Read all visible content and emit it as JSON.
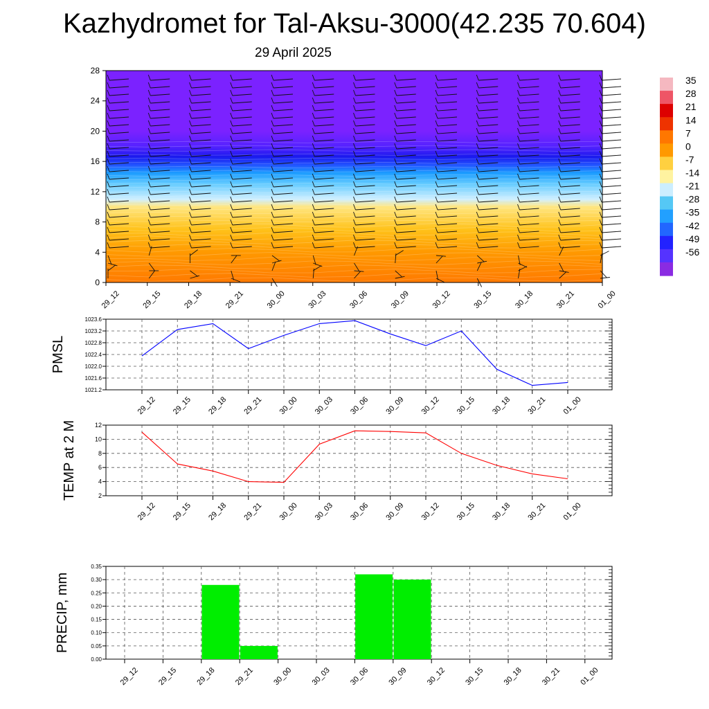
{
  "title": "Kazhydromet for Tal-Aksu-3000(42.235 70.604)",
  "subtitle": "29 April 2025",
  "time_labels": [
    "29_12",
    "29_15",
    "29_18",
    "29_21",
    "30_00",
    "30_03",
    "30_06",
    "30_09",
    "30_12",
    "30_15",
    "30_18",
    "30_21",
    "01_00"
  ],
  "colorbar": {
    "labels": [
      "35",
      "28",
      "21",
      "14",
      "7",
      "0",
      "-7",
      "-14",
      "-21",
      "-28",
      "-35",
      "-42",
      "-49",
      "-56"
    ]
  },
  "chart_data": [
    {
      "type": "heatmap",
      "name": "temperature-cross-section",
      "ylim": [
        0,
        28
      ],
      "y_ticks": [
        0,
        4,
        8,
        12,
        16,
        20,
        24,
        28
      ],
      "color_stops": [
        {
          "h": 0,
          "color": "#ff7a00"
        },
        {
          "h": 4,
          "color": "#ff9900"
        },
        {
          "h": 7,
          "color": "#ffc21a"
        },
        {
          "h": 10,
          "color": "#ffe680"
        },
        {
          "h": 11,
          "color": "#cfefff"
        },
        {
          "h": 13,
          "color": "#66ccff"
        },
        {
          "h": 14.5,
          "color": "#1a9bff"
        },
        {
          "h": 15.5,
          "color": "#2255ff"
        },
        {
          "h": 16.6,
          "color": "#1a1aee"
        },
        {
          "h": 18,
          "color": "#5522ff"
        },
        {
          "h": 20,
          "color": "#7b22ff"
        },
        {
          "h": 28,
          "color": "#7b22ff"
        }
      ]
    },
    {
      "type": "line",
      "ylabel": "PMSL",
      "ylim": [
        1021.2,
        1023.6
      ],
      "y_ticks": [
        "1021.2",
        "1021.6",
        "1022.0",
        "1022.4",
        "1022.8",
        "1023.2",
        "1023.6"
      ],
      "color": "#0000ff",
      "values": [
        1022.35,
        1023.25,
        1023.45,
        1022.6,
        1023.05,
        1023.45,
        1023.55,
        1023.1,
        1022.7,
        1023.2,
        1021.9,
        1021.35,
        1021.45
      ]
    },
    {
      "type": "line",
      "ylabel": "TEMP at 2 M",
      "ylim": [
        2,
        12
      ],
      "y_ticks": [
        "2",
        "4",
        "6",
        "8",
        "10",
        "12"
      ],
      "color": "#ff0000",
      "values": [
        11.0,
        6.5,
        5.5,
        4.0,
        3.9,
        9.3,
        11.2,
        11.1,
        10.9,
        8.0,
        6.3,
        5.1,
        4.4
      ]
    },
    {
      "type": "bar",
      "ylabel": "PRECIP, mm",
      "ylim": [
        0,
        0.35
      ],
      "y_ticks": [
        "0.00",
        "0.05",
        "0.10",
        "0.15",
        "0.20",
        "0.25",
        "0.30",
        "0.35"
      ],
      "color": "#00ee00",
      "values": [
        0,
        0,
        0.28,
        0.05,
        0,
        0,
        0.32,
        0.3,
        0,
        0,
        0,
        0,
        0
      ]
    }
  ]
}
